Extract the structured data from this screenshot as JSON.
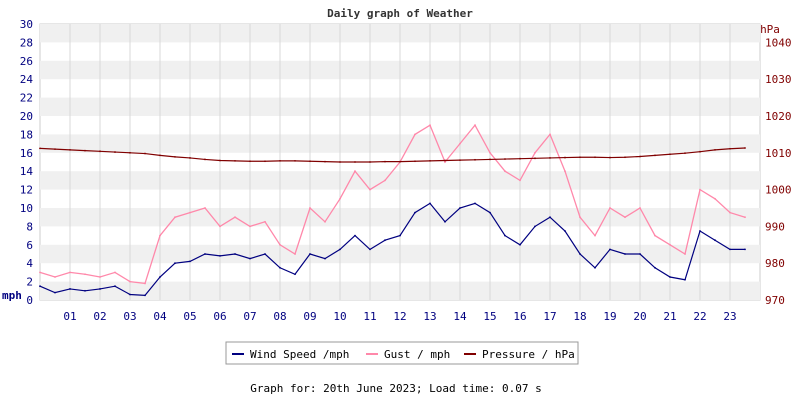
{
  "chart_data": {
    "type": "line",
    "title": "Daily graph of Weather",
    "left_axis": {
      "label": "mph",
      "ylim": [
        0,
        30
      ],
      "ticks": [
        0,
        2,
        4,
        6,
        8,
        10,
        12,
        14,
        16,
        18,
        20,
        22,
        24,
        26,
        28,
        30
      ]
    },
    "right_axis": {
      "label": "hPa",
      "ylim": [
        970,
        1045
      ],
      "ticks": [
        970,
        980,
        990,
        1000,
        1010,
        1020,
        1030,
        1040
      ]
    },
    "x_axis": {
      "range": [
        0,
        24
      ],
      "ticks": [
        "01",
        "02",
        "03",
        "04",
        "05",
        "06",
        "07",
        "08",
        "09",
        "10",
        "11",
        "12",
        "13",
        "14",
        "15",
        "16",
        "17",
        "18",
        "19",
        "20",
        "21",
        "22",
        "23"
      ]
    },
    "grid": true,
    "legend_position": "bottom",
    "x": [
      0,
      0.5,
      1,
      1.5,
      2,
      2.5,
      3,
      3.5,
      4,
      4.5,
      5,
      5.5,
      6,
      6.5,
      7,
      7.5,
      8,
      8.5,
      9,
      9.5,
      10,
      10.5,
      11,
      11.5,
      12,
      12.5,
      13,
      13.5,
      14,
      14.5,
      15,
      15.5,
      16,
      16.5,
      17,
      17.5,
      18,
      18.5,
      19,
      19.5,
      20,
      20.5,
      21,
      21.5,
      22,
      22.5,
      23,
      23.5
    ],
    "series": [
      {
        "name": "Wind Speed /mph",
        "axis": "left",
        "color": "#000080",
        "values": [
          1.5,
          0.8,
          1.2,
          1,
          1.2,
          1.5,
          0.6,
          0.5,
          2.5,
          4,
          4.2,
          5,
          4.8,
          5,
          4.5,
          5,
          3.5,
          2.8,
          5,
          4.5,
          5.5,
          7,
          5.5,
          6.5,
          7,
          9.5,
          10.5,
          8.5,
          10,
          10.5,
          9.5,
          7,
          6,
          8,
          9,
          7.5,
          5,
          3.5,
          5.5,
          5,
          5,
          3.5,
          2.5,
          2.2,
          7.5,
          6.5,
          5.5,
          5.5
        ]
      },
      {
        "name": "Gust / mph",
        "axis": "left",
        "color": "#ff88aa",
        "values": [
          3,
          2.5,
          3,
          2.8,
          2.5,
          3,
          2,
          1.8,
          7,
          9,
          9.5,
          10,
          8,
          9,
          8,
          8.5,
          6,
          5,
          10,
          8.5,
          11,
          14,
          12,
          13,
          15,
          18,
          19,
          15,
          17,
          19,
          16,
          14,
          13,
          16,
          18,
          14,
          9,
          7,
          10,
          9,
          10,
          7,
          6,
          5,
          12,
          11,
          9.5,
          9
        ]
      },
      {
        "name": "Pressure / hPa",
        "axis": "right",
        "color": "#800000",
        "values": [
          1011.2,
          1011,
          1010.8,
          1010.6,
          1010.4,
          1010.2,
          1010,
          1009.8,
          1009.3,
          1008.9,
          1008.6,
          1008.2,
          1007.9,
          1007.8,
          1007.7,
          1007.7,
          1007.8,
          1007.8,
          1007.7,
          1007.6,
          1007.5,
          1007.5,
          1007.5,
          1007.6,
          1007.6,
          1007.7,
          1007.8,
          1007.9,
          1008,
          1008.1,
          1008.2,
          1008.3,
          1008.4,
          1008.5,
          1008.6,
          1008.7,
          1008.8,
          1008.8,
          1008.7,
          1008.8,
          1009,
          1009.3,
          1009.6,
          1009.9,
          1010.3,
          1010.8,
          1011.1,
          1011.3
        ]
      }
    ]
  },
  "footer": "Graph for: 20th June 2023; Load time: 0.07 s"
}
